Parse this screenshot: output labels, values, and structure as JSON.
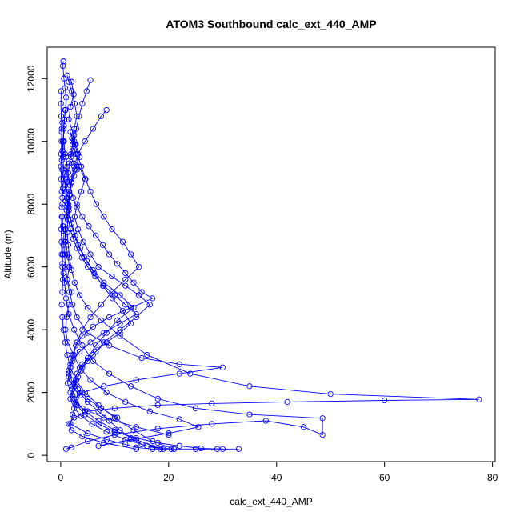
{
  "chart_data": {
    "type": "line",
    "title": "ATOM3 Southbound calc_ext_440_AMP",
    "xlabel": "calc_ext_440_AMP",
    "ylabel": "Altitude (m)",
    "xlim": [
      -2.5,
      80.5
    ],
    "ylim": [
      -200,
      13000
    ],
    "x_ticks": [
      0,
      20,
      40,
      60,
      80
    ],
    "y_ticks": [
      0,
      2000,
      4000,
      6000,
      8000,
      10000,
      12000
    ],
    "x_tick_labels": [
      "0",
      "20",
      "40",
      "60",
      "80"
    ],
    "y_tick_labels": [
      "0",
      "2000",
      "4000",
      "6000",
      "8000",
      "10000",
      "12000"
    ],
    "grid": false,
    "legend": "none",
    "series_color": "#0000ff",
    "marker": "open-circle",
    "series": [
      {
        "values_note": "profile 1",
        "x": [
          0.5,
          0.4,
          0.6,
          0.8,
          1.0,
          0.9,
          0.7,
          0.5,
          0.6,
          0.8,
          1.2,
          1.0,
          0.9,
          1.4,
          1.1,
          0.8,
          0.9,
          1.3,
          1.6,
          1.2,
          2.0,
          1.5,
          1.1,
          0.9,
          1.3,
          2.4,
          1.8,
          1.5,
          2.2,
          3.5,
          2.8,
          2.2,
          1.8,
          5.0,
          8.5,
          12.0,
          14.0,
          17.0,
          21.0,
          25.0,
          29.0,
          33.0
        ],
        "y": [
          12550,
          12400,
          12000,
          11700,
          11400,
          11000,
          10700,
          10400,
          10000,
          9600,
          9200,
          8800,
          8400,
          8000,
          7600,
          7200,
          6800,
          6400,
          6000,
          5600,
          5200,
          4800,
          4400,
          4000,
          3600,
          3200,
          2800,
          2500,
          2200,
          1900,
          1600,
          1300,
          1000,
          700,
          500,
          350,
          250,
          200,
          200,
          200,
          200,
          200
        ]
      },
      {
        "values_note": "profile 2",
        "x": [
          1.2,
          1.5,
          2.0,
          2.6,
          3.0,
          2.5,
          2.2,
          2.8,
          3.4,
          4.5,
          3.8,
          3.0,
          2.6,
          3.2,
          4.2,
          5.5,
          7.0,
          9.5,
          12.0,
          14.5,
          16.5,
          14.0,
          11.0,
          8.0,
          6.0,
          4.0,
          3.0,
          2.5,
          3.5,
          5.0,
          7.0,
          9.0,
          11.0,
          13.0,
          15.0,
          17.0,
          19.0
        ],
        "y": [
          12100,
          11900,
          11600,
          11200,
          10800,
          10400,
          10000,
          9600,
          9200,
          8800,
          8400,
          8000,
          7600,
          7200,
          6800,
          6400,
          6000,
          5700,
          5400,
          5100,
          4800,
          4400,
          4000,
          3600,
          3200,
          2900,
          2600,
          2300,
          2000,
          1700,
          1400,
          1100,
          800,
          550,
          350,
          250,
          200
        ]
      },
      {
        "values_note": "profile 3",
        "x": [
          2.0,
          2.4,
          1.8,
          1.5,
          2.2,
          2.8,
          3.5,
          2.6,
          2.0,
          1.6,
          1.4,
          1.8,
          2.4,
          3.2,
          4.4,
          6.0,
          8.0,
          11.0,
          13.5,
          10.5,
          8.5,
          6.5,
          5.0,
          4.0,
          3.2,
          2.6,
          2.2,
          3.0,
          4.5,
          7.0,
          10.0,
          14.0,
          18.0,
          22.0,
          26.0,
          30.0
        ],
        "y": [
          11900,
          11500,
          11100,
          10700,
          10300,
          9900,
          9500,
          9100,
          8700,
          8300,
          7900,
          7500,
          7100,
          6700,
          6300,
          5900,
          5500,
          5100,
          4700,
          4300,
          3900,
          3500,
          3100,
          2800,
          2500,
          2200,
          1900,
          1600,
          1300,
          1000,
          750,
          550,
          400,
          300,
          220,
          200
        ]
      },
      {
        "values_note": "profile 4",
        "x": [
          8.5,
          7.5,
          6.0,
          4.5,
          3.2,
          2.5,
          2.0,
          1.6,
          1.3,
          1.1,
          0.9,
          0.8,
          0.7,
          0.9,
          1.2,
          1.6,
          2.2,
          3.0,
          5.0,
          9.0,
          15.0,
          22.0,
          30.0,
          22.0,
          14.0,
          8.0,
          4.0,
          2.5,
          4.0,
          8.0,
          14.0,
          20.0
        ],
        "y": [
          11000,
          10800,
          10400,
          10000,
          9600,
          9200,
          8800,
          8400,
          8000,
          7600,
          7200,
          6800,
          6400,
          6000,
          5600,
          5200,
          4800,
          4400,
          3900,
          3500,
          3100,
          2900,
          2800,
          2600,
          2400,
          2200,
          2000,
          1800,
          1500,
          1200,
          900,
          650
        ]
      },
      {
        "values_note": "profile 5",
        "x": [
          1.8,
          2.1,
          2.6,
          2.2,
          1.9,
          2.4,
          3.0,
          2.5,
          2.0,
          1.7,
          1.5,
          1.3,
          1.2,
          1.4,
          1.6,
          2.0,
          2.6,
          3.5,
          5.0,
          7.5,
          11.0,
          16.0,
          24.0,
          35.0,
          50.0,
          77.5,
          60.0,
          42.0,
          28.0,
          18.0,
          10.0,
          5.0,
          2.5,
          1.5,
          2.0,
          4.0,
          8.0,
          14.0
        ],
        "y": [
          10300,
          10100,
          9900,
          9700,
          9500,
          9300,
          9100,
          8900,
          8700,
          8300,
          7900,
          7500,
          7100,
          6700,
          6300,
          5900,
          5500,
          5100,
          4700,
          4300,
          3800,
          3200,
          2600,
          2200,
          1950,
          1780,
          1750,
          1700,
          1650,
          1600,
          1500,
          1400,
          1200,
          1000,
          800,
          600,
          400,
          200
        ]
      },
      {
        "values_note": "profile 6",
        "x": [
          0.3,
          0.2,
          0.4,
          0.3,
          0.2,
          0.3,
          0.5,
          0.4,
          0.3,
          0.2,
          0.3,
          0.4,
          0.6,
          0.5,
          0.4,
          0.3,
          0.5,
          0.7,
          1.0,
          1.5,
          2.5,
          4.0,
          6.0,
          9.0,
          13.0,
          18.0,
          25.0,
          35.0,
          48.5,
          48.5,
          45.0,
          38.0,
          28.0,
          18.0,
          10.0,
          5.0,
          2.0,
          1.0
        ],
        "y": [
          10600,
          10300,
          10000,
          9700,
          9400,
          9100,
          8800,
          8500,
          8200,
          7900,
          7600,
          7300,
          7000,
          6700,
          6400,
          6100,
          5800,
          5500,
          5000,
          4500,
          4000,
          3500,
          3000,
          2600,
          2200,
          1800,
          1500,
          1300,
          1180,
          650,
          900,
          1100,
          1000,
          850,
          650,
          450,
          250,
          200
        ]
      },
      {
        "values_note": "profile 7",
        "x": [
          5.5,
          4.8,
          4.0,
          3.4,
          2.9,
          2.5,
          3.1,
          3.8,
          4.6,
          5.5,
          6.6,
          8.0,
          9.5,
          11.5,
          13.0,
          14.5,
          12.0,
          9.5,
          7.5,
          5.5,
          4.0,
          3.0,
          2.4,
          3.5,
          5.5,
          8.5,
          12.0,
          16.5,
          22.0,
          25.5,
          20.0,
          13.0,
          7.0
        ],
        "y": [
          11950,
          11600,
          11200,
          10800,
          10400,
          10000,
          9600,
          9200,
          8800,
          8400,
          8000,
          7600,
          7200,
          6800,
          6400,
          6000,
          5600,
          5200,
          4800,
          4400,
          4000,
          3600,
          3200,
          2800,
          2400,
          2000,
          1700,
          1400,
          1150,
          900,
          700,
          500,
          300
        ]
      },
      {
        "values_note": "profile 8",
        "x": [
          0.1,
          0.05,
          0.1,
          0.2,
          0.15,
          0.1,
          0.05,
          0.1,
          0.2,
          0.3,
          0.2,
          0.1,
          0.15,
          0.2,
          0.3,
          0.4,
          0.3,
          0.2,
          0.3,
          0.5,
          0.8,
          1.2,
          1.8,
          2.8,
          4.5,
          7.0,
          10.0,
          13.5,
          17.0,
          21.0
        ],
        "y": [
          11600,
          11200,
          10800,
          10400,
          10000,
          9600,
          9200,
          8800,
          8400,
          8000,
          7600,
          7200,
          6800,
          6400,
          6000,
          5600,
          5200,
          4800,
          4400,
          4000,
          3600,
          3200,
          2800,
          2400,
          2000,
          1600,
          1200,
          800,
          450,
          200
        ]
      },
      {
        "values_note": "profile 9",
        "x": [
          1.0,
          1.3,
          1.7,
          2.3,
          3.0,
          4.0,
          5.2,
          6.5,
          7.8,
          9.0,
          10.5,
          12.0,
          13.5,
          15.0,
          17.0,
          13.0,
          9.0,
          6.0,
          4.0,
          2.8,
          2.2,
          1.8,
          1.5,
          1.3,
          1.8,
          2.8,
          4.5,
          7.0,
          10.0,
          14.0,
          18.5
        ],
        "y": [
          9500,
          9000,
          8600,
          8200,
          7900,
          7600,
          7300,
          7000,
          6700,
          6400,
          6100,
          5800,
          5500,
          5200,
          5000,
          4700,
          4400,
          4100,
          3800,
          3500,
          3200,
          2900,
          2600,
          2300,
          2000,
          1700,
          1400,
          1100,
          800,
          500,
          200
        ]
      },
      {
        "values_note": "profile 10",
        "x": [
          0.8,
          0.6,
          0.5,
          0.4,
          0.6,
          0.8,
          1.1,
          1.5,
          2.0,
          2.7,
          3.6,
          4.8,
          6.2,
          7.8,
          9.6,
          11.5,
          13.0,
          11.0,
          8.5,
          6.5,
          5.0,
          3.8,
          2.9,
          2.2,
          1.8,
          2.5,
          3.8,
          5.8,
          8.5,
          12.0,
          16.0,
          20.5
        ],
        "y": [
          11000,
          10500,
          10000,
          9500,
          9000,
          8600,
          8200,
          7800,
          7400,
          7000,
          6600,
          6200,
          5800,
          5400,
          5000,
          4600,
          4200,
          3900,
          3600,
          3300,
          3000,
          2700,
          2400,
          2100,
          1800,
          1500,
          1250,
          1000,
          750,
          500,
          300,
          200
        ]
      },
      {
        "values_note": "profile 11",
        "x": [
          2.5,
          2.2,
          1.9,
          1.6,
          1.4,
          1.2,
          1.0,
          0.9,
          1.1,
          1.4,
          1.8,
          2.3,
          3.0,
          3.9,
          5.0,
          6.4,
          8.0,
          10.0,
          12.0,
          14.0,
          11.0,
          8.0,
          5.5,
          3.5,
          2.2,
          1.5,
          2.0,
          3.2,
          5.0,
          7.5,
          10.5
        ],
        "y": [
          10200,
          9900,
          9600,
          9300,
          9000,
          8700,
          8400,
          8100,
          7800,
          7500,
          7200,
          6900,
          6600,
          6300,
          6000,
          5700,
          5400,
          5100,
          4800,
          4500,
          4200,
          3900,
          3600,
          3300,
          3000,
          2700,
          2400,
          2100,
          1800,
          1500,
          1200
        ]
      }
    ]
  }
}
